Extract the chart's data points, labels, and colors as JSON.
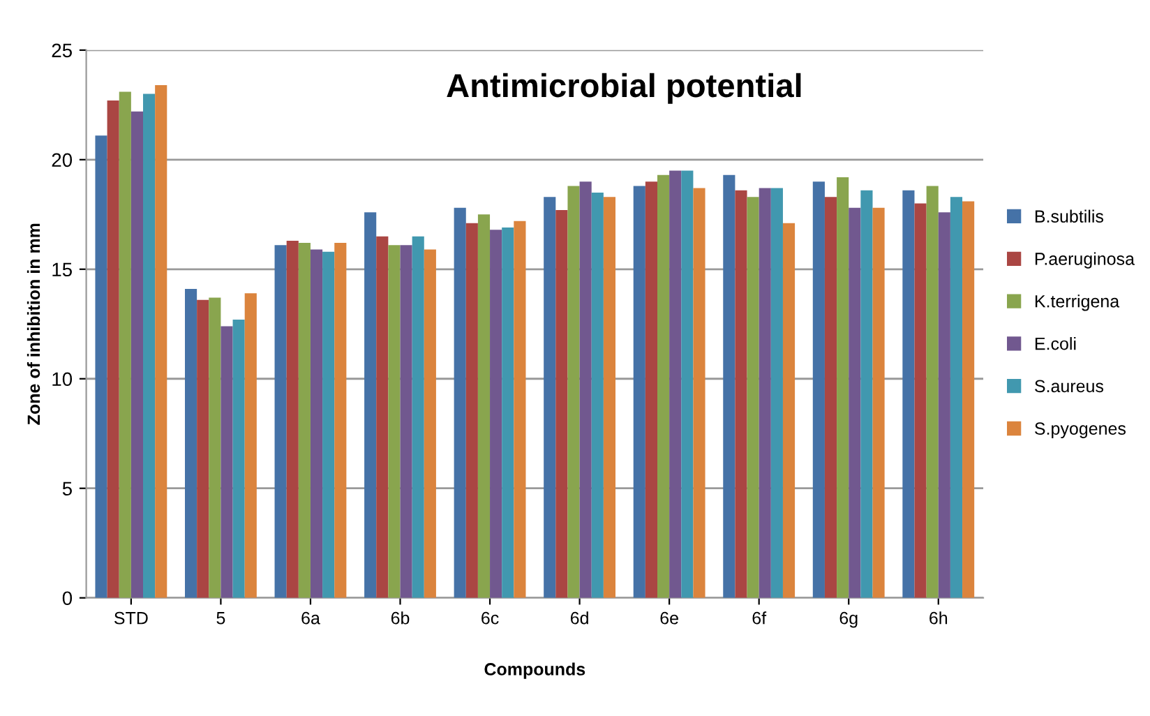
{
  "chart_data": {
    "type": "bar",
    "title": "Antimicrobial potential",
    "xlabel": "Compounds",
    "ylabel": "Zone of inhibition in mm",
    "categories": [
      "STD",
      "5",
      "6a",
      "6b",
      "6c",
      "6d",
      "6e",
      "6f",
      "6g",
      "6h"
    ],
    "series": [
      {
        "name": "B.subtilis",
        "color": "#4572a7",
        "values": [
          21.1,
          14.1,
          16.1,
          17.6,
          17.8,
          18.3,
          18.8,
          19.3,
          19.0,
          18.6
        ]
      },
      {
        "name": "P.aeruginosa",
        "color": "#aa4643",
        "values": [
          22.7,
          13.6,
          16.3,
          16.5,
          17.1,
          17.7,
          19.0,
          18.6,
          18.3,
          18.0
        ]
      },
      {
        "name": "K.terrigena",
        "color": "#89a54e",
        "values": [
          23.1,
          13.7,
          16.2,
          16.1,
          17.5,
          18.8,
          19.3,
          18.3,
          19.2,
          18.8
        ]
      },
      {
        "name": "E.coli",
        "color": "#71588f",
        "values": [
          22.2,
          12.4,
          15.9,
          16.1,
          16.8,
          19.0,
          19.5,
          18.7,
          17.8,
          17.6
        ]
      },
      {
        "name": "S.aureus",
        "color": "#4198af",
        "values": [
          23.0,
          12.7,
          15.8,
          16.5,
          16.9,
          18.5,
          19.5,
          18.7,
          18.6,
          18.3
        ]
      },
      {
        "name": "S.pyogenes",
        "color": "#db843d",
        "values": [
          23.4,
          13.9,
          16.2,
          15.9,
          17.2,
          18.3,
          18.7,
          17.1,
          17.8,
          18.1
        ]
      }
    ],
    "ylim": [
      0,
      25
    ],
    "yticks": [
      0,
      5,
      10,
      15,
      20,
      25
    ],
    "grid": "y",
    "legend": "right"
  }
}
